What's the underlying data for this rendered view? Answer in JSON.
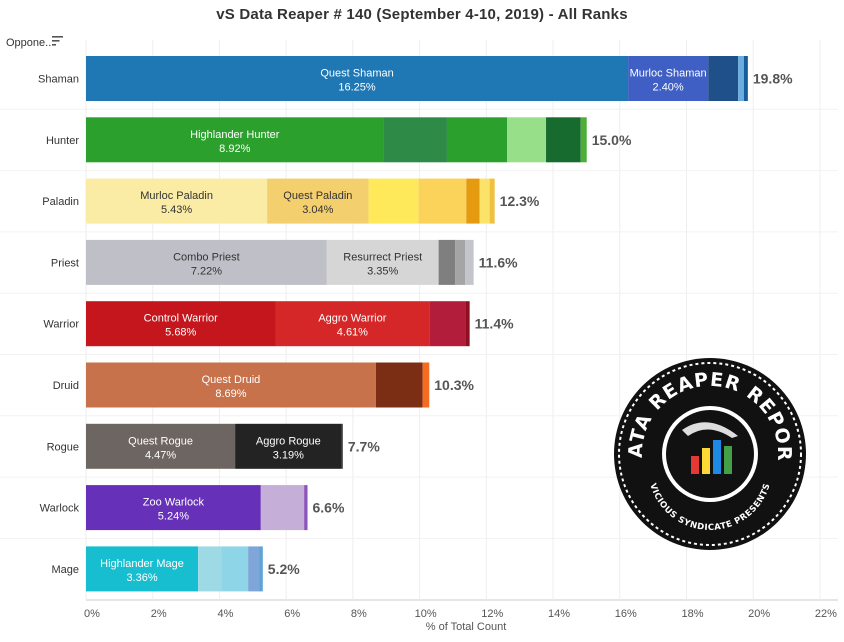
{
  "header": {
    "title": "vS Data Reaper # 140 (September 4-10, 2019) - All Ranks",
    "column_label": "Oppone..",
    "sort_icon": "sort-icon"
  },
  "logo": {
    "top_text": "DATA REAPER REPORT",
    "bottom_text": "VICIOUS SYNDICATE PRESENTS"
  },
  "chart_data": {
    "type": "bar",
    "orientation": "horizontal",
    "stacked": true,
    "title": "vS Data Reaper # 140 (September 4-10, 2019) - All Ranks",
    "xlabel": "% of Total Count",
    "ylabel": "Oppone..",
    "xlim": [
      0,
      22
    ],
    "x_ticks": [
      "0%",
      "2%",
      "4%",
      "6%",
      "8%",
      "10%",
      "12%",
      "14%",
      "16%",
      "18%",
      "20%",
      "22%"
    ],
    "grid": true,
    "legend": "none",
    "categories": [
      {
        "name": "Shaman",
        "total": "19.8%",
        "segments": [
          {
            "label": "Quest Shaman",
            "value": 16.25,
            "color": "#1f77b4"
          },
          {
            "label": "Murloc Shaman",
            "value": 2.4,
            "color": "#3f5fc4"
          },
          {
            "label": "",
            "value": 0.9,
            "color": "#20508a"
          },
          {
            "label": "",
            "value": 0.17,
            "color": "#6aaee0"
          },
          {
            "label": "",
            "value": 0.12,
            "color": "#1a5c99"
          }
        ]
      },
      {
        "name": "Hunter",
        "total": "15.0%",
        "segments": [
          {
            "label": "Highlander Hunter",
            "value": 8.92,
            "color": "#2ca02c"
          },
          {
            "label": "",
            "value": 1.9,
            "color": "#2e8b47"
          },
          {
            "label": "",
            "value": 1.8,
            "color": "#2ca02c"
          },
          {
            "label": "",
            "value": 1.17,
            "color": "#98df8a"
          },
          {
            "label": "",
            "value": 1.04,
            "color": "#176b2e"
          },
          {
            "label": "",
            "value": 0.18,
            "color": "#4daf3a"
          }
        ]
      },
      {
        "name": "Paladin",
        "total": "12.3%",
        "segments": [
          {
            "label": "Murloc Paladin",
            "value": 5.43,
            "color": "#faeba5"
          },
          {
            "label": "Quest Paladin",
            "value": 3.04,
            "color": "#f4cf6d"
          },
          {
            "label": "",
            "value": 1.5,
            "color": "#fde95a"
          },
          {
            "label": "",
            "value": 1.43,
            "color": "#fbd35b"
          },
          {
            "label": "",
            "value": 0.4,
            "color": "#e49b10"
          },
          {
            "label": "",
            "value": 0.3,
            "color": "#fbe36a"
          },
          {
            "label": "",
            "value": 0.15,
            "color": "#f0c040"
          }
        ]
      },
      {
        "name": "Priest",
        "total": "11.6%",
        "segments": [
          {
            "label": "Combo Priest",
            "value": 7.22,
            "color": "#bfbfc7"
          },
          {
            "label": "Resurrect Priest",
            "value": 3.35,
            "color": "#d6d6d6"
          },
          {
            "label": "",
            "value": 0.5,
            "color": "#7f7f7f"
          },
          {
            "label": "",
            "value": 0.3,
            "color": "#a5a5a5"
          },
          {
            "label": "",
            "value": 0.25,
            "color": "#c4c4cc"
          }
        ]
      },
      {
        "name": "Warrior",
        "total": "11.4%",
        "segments": [
          {
            "label": "Control Warrior",
            "value": 5.68,
            "color": "#c4161c"
          },
          {
            "label": "Aggro Warrior",
            "value": 4.61,
            "color": "#d62728"
          },
          {
            "label": "",
            "value": 1.1,
            "color": "#b11d3a"
          },
          {
            "label": "",
            "value": 0.11,
            "color": "#8e1020"
          }
        ]
      },
      {
        "name": "Druid",
        "total": "10.3%",
        "segments": [
          {
            "label": "Quest Druid",
            "value": 8.69,
            "color": "#c7724a"
          },
          {
            "label": "",
            "value": 1.4,
            "color": "#7b2e14"
          },
          {
            "label": "",
            "value": 0.2,
            "color": "#f36c21"
          }
        ]
      },
      {
        "name": "Rogue",
        "total": "7.7%",
        "segments": [
          {
            "label": "Quest Rogue",
            "value": 4.47,
            "color": "#6d6561"
          },
          {
            "label": "Aggro Rogue",
            "value": 3.19,
            "color": "#232323"
          },
          {
            "label": "",
            "value": 0.04,
            "color": "#4a4a4a"
          }
        ]
      },
      {
        "name": "Warlock",
        "total": "6.6%",
        "segments": [
          {
            "label": "Zoo Warlock",
            "value": 5.24,
            "color": "#6730b8"
          },
          {
            "label": "",
            "value": 1.3,
            "color": "#c5aed8"
          },
          {
            "label": "",
            "value": 0.1,
            "color": "#8c54b8"
          }
        ]
      },
      {
        "name": "Mage",
        "total": "5.2%",
        "segments": [
          {
            "label": "Highlander Mage",
            "value": 3.36,
            "color": "#17becf"
          },
          {
            "label": "",
            "value": 0.7,
            "color": "#9edae5"
          },
          {
            "label": "",
            "value": 0.8,
            "color": "#8ed5e8"
          },
          {
            "label": "",
            "value": 0.34,
            "color": "#7fa6d8"
          },
          {
            "label": "",
            "value": 0.1,
            "color": "#5ea3d4"
          }
        ]
      }
    ]
  }
}
